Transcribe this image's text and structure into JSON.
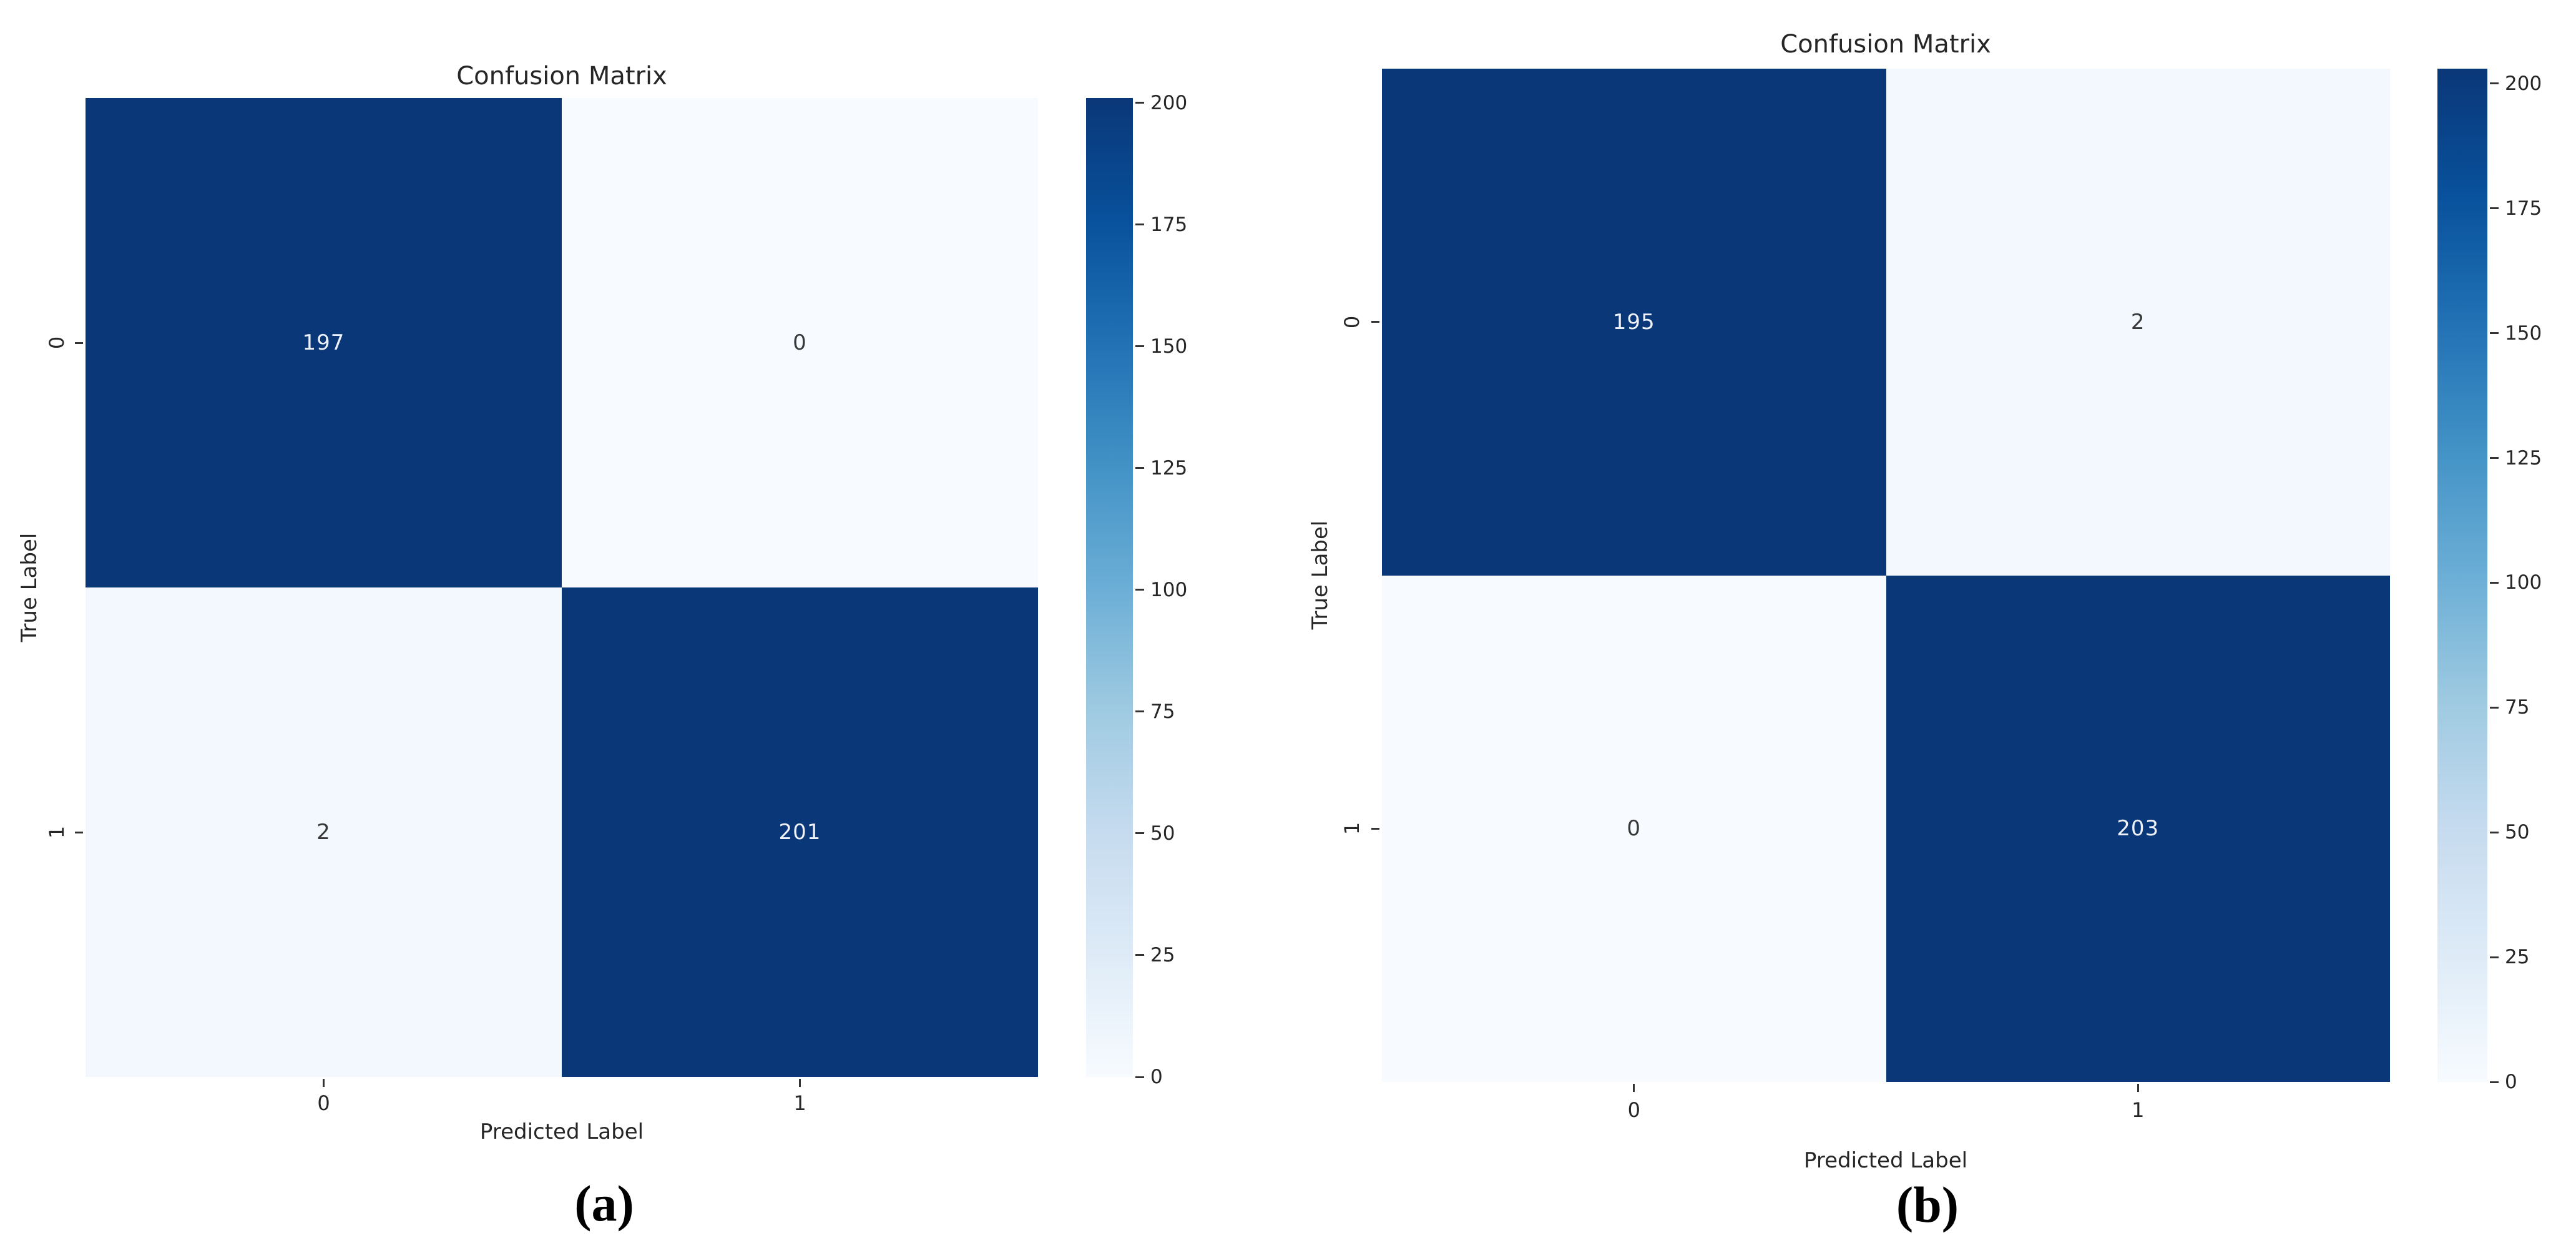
{
  "page": {
    "background": "#ffffff"
  },
  "chart_data": [
    {
      "type": "heatmap",
      "panel": "a",
      "caption": "(a)",
      "title": "Confusion Matrix",
      "xlabel": "Predicted Label",
      "ylabel": "True Label",
      "x_tick_labels": [
        "0",
        "1"
      ],
      "y_tick_labels": [
        "0",
        "1"
      ],
      "matrix": [
        [
          197,
          0
        ],
        [
          2,
          201
        ]
      ],
      "vmin": 0,
      "vmax": 201,
      "colorbar_ticks": [
        200,
        175,
        150,
        125,
        100,
        75,
        50,
        25,
        0
      ],
      "colormap": "Blues",
      "legend_position": "right-colorbar",
      "grid": false
    },
    {
      "type": "heatmap",
      "panel": "b",
      "caption": "(b)",
      "title": "Confusion Matrix",
      "xlabel": "Predicted Label",
      "ylabel": "True Label",
      "x_tick_labels": [
        "0",
        "1"
      ],
      "y_tick_labels": [
        "0",
        "1"
      ],
      "matrix": [
        [
          195,
          2
        ],
        [
          0,
          203
        ]
      ],
      "vmin": 0,
      "vmax": 203,
      "colorbar_ticks": [
        200,
        175,
        150,
        125,
        100,
        75,
        50,
        25,
        0
      ],
      "colormap": "Blues",
      "legend_position": "right-colorbar",
      "grid": false
    }
  ],
  "colors": {
    "cell_high": "#0a3778",
    "cell_zero": "#f7fbff",
    "cell_low": "#f2f8fd",
    "text_on_dark": "#eef2f8",
    "text_on_light": "#373737",
    "axis_text": "#262626",
    "tick_mark": "#333333",
    "caption_text": "#000000",
    "colorbar_stops_top_to_bottom": [
      "#0a3778",
      "#08519c",
      "#2171b5",
      "#4292c6",
      "#6baed6",
      "#9ecae1",
      "#c6dbef",
      "#deebf7",
      "#f7fbff"
    ]
  }
}
